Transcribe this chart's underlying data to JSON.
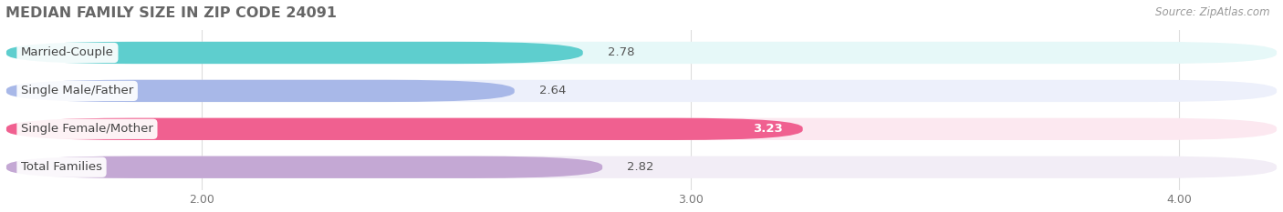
{
  "title": "MEDIAN FAMILY SIZE IN ZIP CODE 24091",
  "source_text": "Source: ZipAtlas.com",
  "categories": [
    "Married-Couple",
    "Single Male/Father",
    "Single Female/Mother",
    "Total Families"
  ],
  "values": [
    2.78,
    2.64,
    3.23,
    2.82
  ],
  "bar_colors": [
    "#5ecece",
    "#a8b8e8",
    "#f06090",
    "#c4a8d4"
  ],
  "bar_bg_colors": [
    "#e6f8f8",
    "#edf0fb",
    "#fce8f0",
    "#f2edf6"
  ],
  "xlim_left": 1.6,
  "xlim_right": 4.2,
  "xticks": [
    2.0,
    3.0,
    4.0
  ],
  "xtick_labels": [
    "2.00",
    "3.00",
    "4.00"
  ],
  "title_color": "#666666",
  "title_fontsize": 11.5,
  "source_fontsize": 8.5,
  "source_color": "#999999",
  "label_fontsize": 9.5,
  "value_fontsize": 9.5,
  "tick_fontsize": 9,
  "bar_height": 0.58,
  "figsize": [
    14.06,
    2.33
  ],
  "dpi": 100,
  "bg_color": "#ffffff"
}
